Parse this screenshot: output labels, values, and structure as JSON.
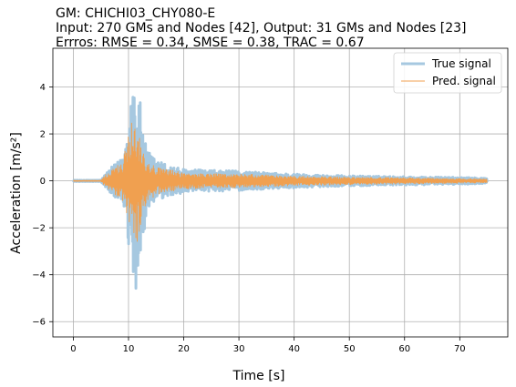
{
  "chart_data": {
    "type": "line",
    "title_lines": [
      "GM: CHICHI03_CHY080-E",
      "Input: 270 GMs and Nodes [42], Output: 31 GMs and Nodes [23]",
      "Errros: RMSE = 0.34, SMSE = 0.38, TRAC = 0.67"
    ],
    "xlabel": "Time [s]",
    "ylabel": "Acceleration [m/s²]",
    "xlim": [
      -3.7,
      78.7
    ],
    "ylim": [
      -6.65,
      5.65
    ],
    "xticks": [
      0,
      10,
      20,
      30,
      40,
      50,
      60,
      70
    ],
    "yticks": [
      -6,
      -4,
      -2,
      0,
      2,
      4
    ],
    "xtick_labels": [
      "0",
      "10",
      "20",
      "30",
      "40",
      "50",
      "60",
      "70"
    ],
    "ytick_labels": [
      "−6",
      "−4",
      "−2",
      "0",
      "2",
      "4"
    ],
    "grid": true,
    "legend_position": "top-right",
    "series": [
      {
        "name": "True signal",
        "color": "#a6c8e0",
        "envelope_points": [
          [
            0,
            0.03
          ],
          [
            5,
            0.03
          ],
          [
            6,
            0.35
          ],
          [
            7,
            0.6
          ],
          [
            8,
            0.8
          ],
          [
            9,
            1.0
          ],
          [
            10,
            2.6
          ],
          [
            10.7,
            4.4
          ],
          [
            11.1,
            4.8
          ],
          [
            11.6,
            2.6
          ],
          [
            12.1,
            3.7
          ],
          [
            12.8,
            1.8
          ],
          [
            13.5,
            1.3
          ],
          [
            15,
            0.9
          ],
          [
            17,
            0.7
          ],
          [
            20,
            0.5
          ],
          [
            25,
            0.45
          ],
          [
            30,
            0.42
          ],
          [
            35,
            0.35
          ],
          [
            40,
            0.3
          ],
          [
            45,
            0.25
          ],
          [
            50,
            0.22
          ],
          [
            60,
            0.18
          ],
          [
            70,
            0.15
          ],
          [
            75,
            0.12
          ]
        ],
        "neg_envelope_points": [
          [
            0,
            -0.03
          ],
          [
            5,
            -0.03
          ],
          [
            6,
            -0.35
          ],
          [
            7,
            -0.6
          ],
          [
            8,
            -0.8
          ],
          [
            9,
            -1.1
          ],
          [
            10,
            -2.8
          ],
          [
            10.7,
            -4.2
          ],
          [
            11.2,
            -5.8
          ],
          [
            11.6,
            -4.6
          ],
          [
            12.1,
            -3.2
          ],
          [
            12.8,
            -2.2
          ],
          [
            13.5,
            -1.4
          ],
          [
            15,
            -0.9
          ],
          [
            17,
            -0.7
          ],
          [
            20,
            -0.5
          ],
          [
            25,
            -0.45
          ],
          [
            30,
            -0.42
          ],
          [
            35,
            -0.35
          ],
          [
            40,
            -0.3
          ],
          [
            45,
            -0.25
          ],
          [
            50,
            -0.22
          ],
          [
            60,
            -0.18
          ],
          [
            70,
            -0.15
          ],
          [
            75,
            -0.12
          ]
        ],
        "t_start": 0,
        "t_end": 75
      },
      {
        "name": "Pred. signal",
        "color": "#f0a050",
        "envelope_points": [
          [
            0,
            0.02
          ],
          [
            5,
            0.02
          ],
          [
            6,
            0.3
          ],
          [
            7,
            0.5
          ],
          [
            8,
            0.7
          ],
          [
            9,
            0.9
          ],
          [
            10,
            2.0
          ],
          [
            10.7,
            2.8
          ],
          [
            11.1,
            2.6
          ],
          [
            11.6,
            2.2
          ],
          [
            12.1,
            2.0
          ],
          [
            12.8,
            1.2
          ],
          [
            13.5,
            0.9
          ],
          [
            15,
            0.6
          ],
          [
            17,
            0.5
          ],
          [
            20,
            0.35
          ],
          [
            25,
            0.3
          ],
          [
            30,
            0.3
          ],
          [
            35,
            0.25
          ],
          [
            40,
            0.2
          ],
          [
            45,
            0.18
          ],
          [
            50,
            0.16
          ],
          [
            60,
            0.13
          ],
          [
            70,
            0.1
          ],
          [
            75,
            0.08
          ]
        ],
        "neg_envelope_points": [
          [
            0,
            -0.02
          ],
          [
            5,
            -0.02
          ],
          [
            6,
            -0.3
          ],
          [
            7,
            -0.5
          ],
          [
            8,
            -0.7
          ],
          [
            9,
            -0.9
          ],
          [
            10,
            -2.0
          ],
          [
            10.7,
            -2.8
          ],
          [
            11.2,
            -3.0
          ],
          [
            11.6,
            -2.6
          ],
          [
            12.1,
            -2.0
          ],
          [
            12.8,
            -1.2
          ],
          [
            13.5,
            -0.9
          ],
          [
            15,
            -0.6
          ],
          [
            17,
            -0.5
          ],
          [
            20,
            -0.35
          ],
          [
            25,
            -0.3
          ],
          [
            30,
            -0.3
          ],
          [
            35,
            -0.25
          ],
          [
            40,
            -0.2
          ],
          [
            45,
            -0.18
          ],
          [
            50,
            -0.16
          ],
          [
            60,
            -0.13
          ],
          [
            70,
            -0.1
          ],
          [
            75,
            -0.08
          ]
        ],
        "t_start": 0,
        "t_end": 75
      }
    ]
  }
}
